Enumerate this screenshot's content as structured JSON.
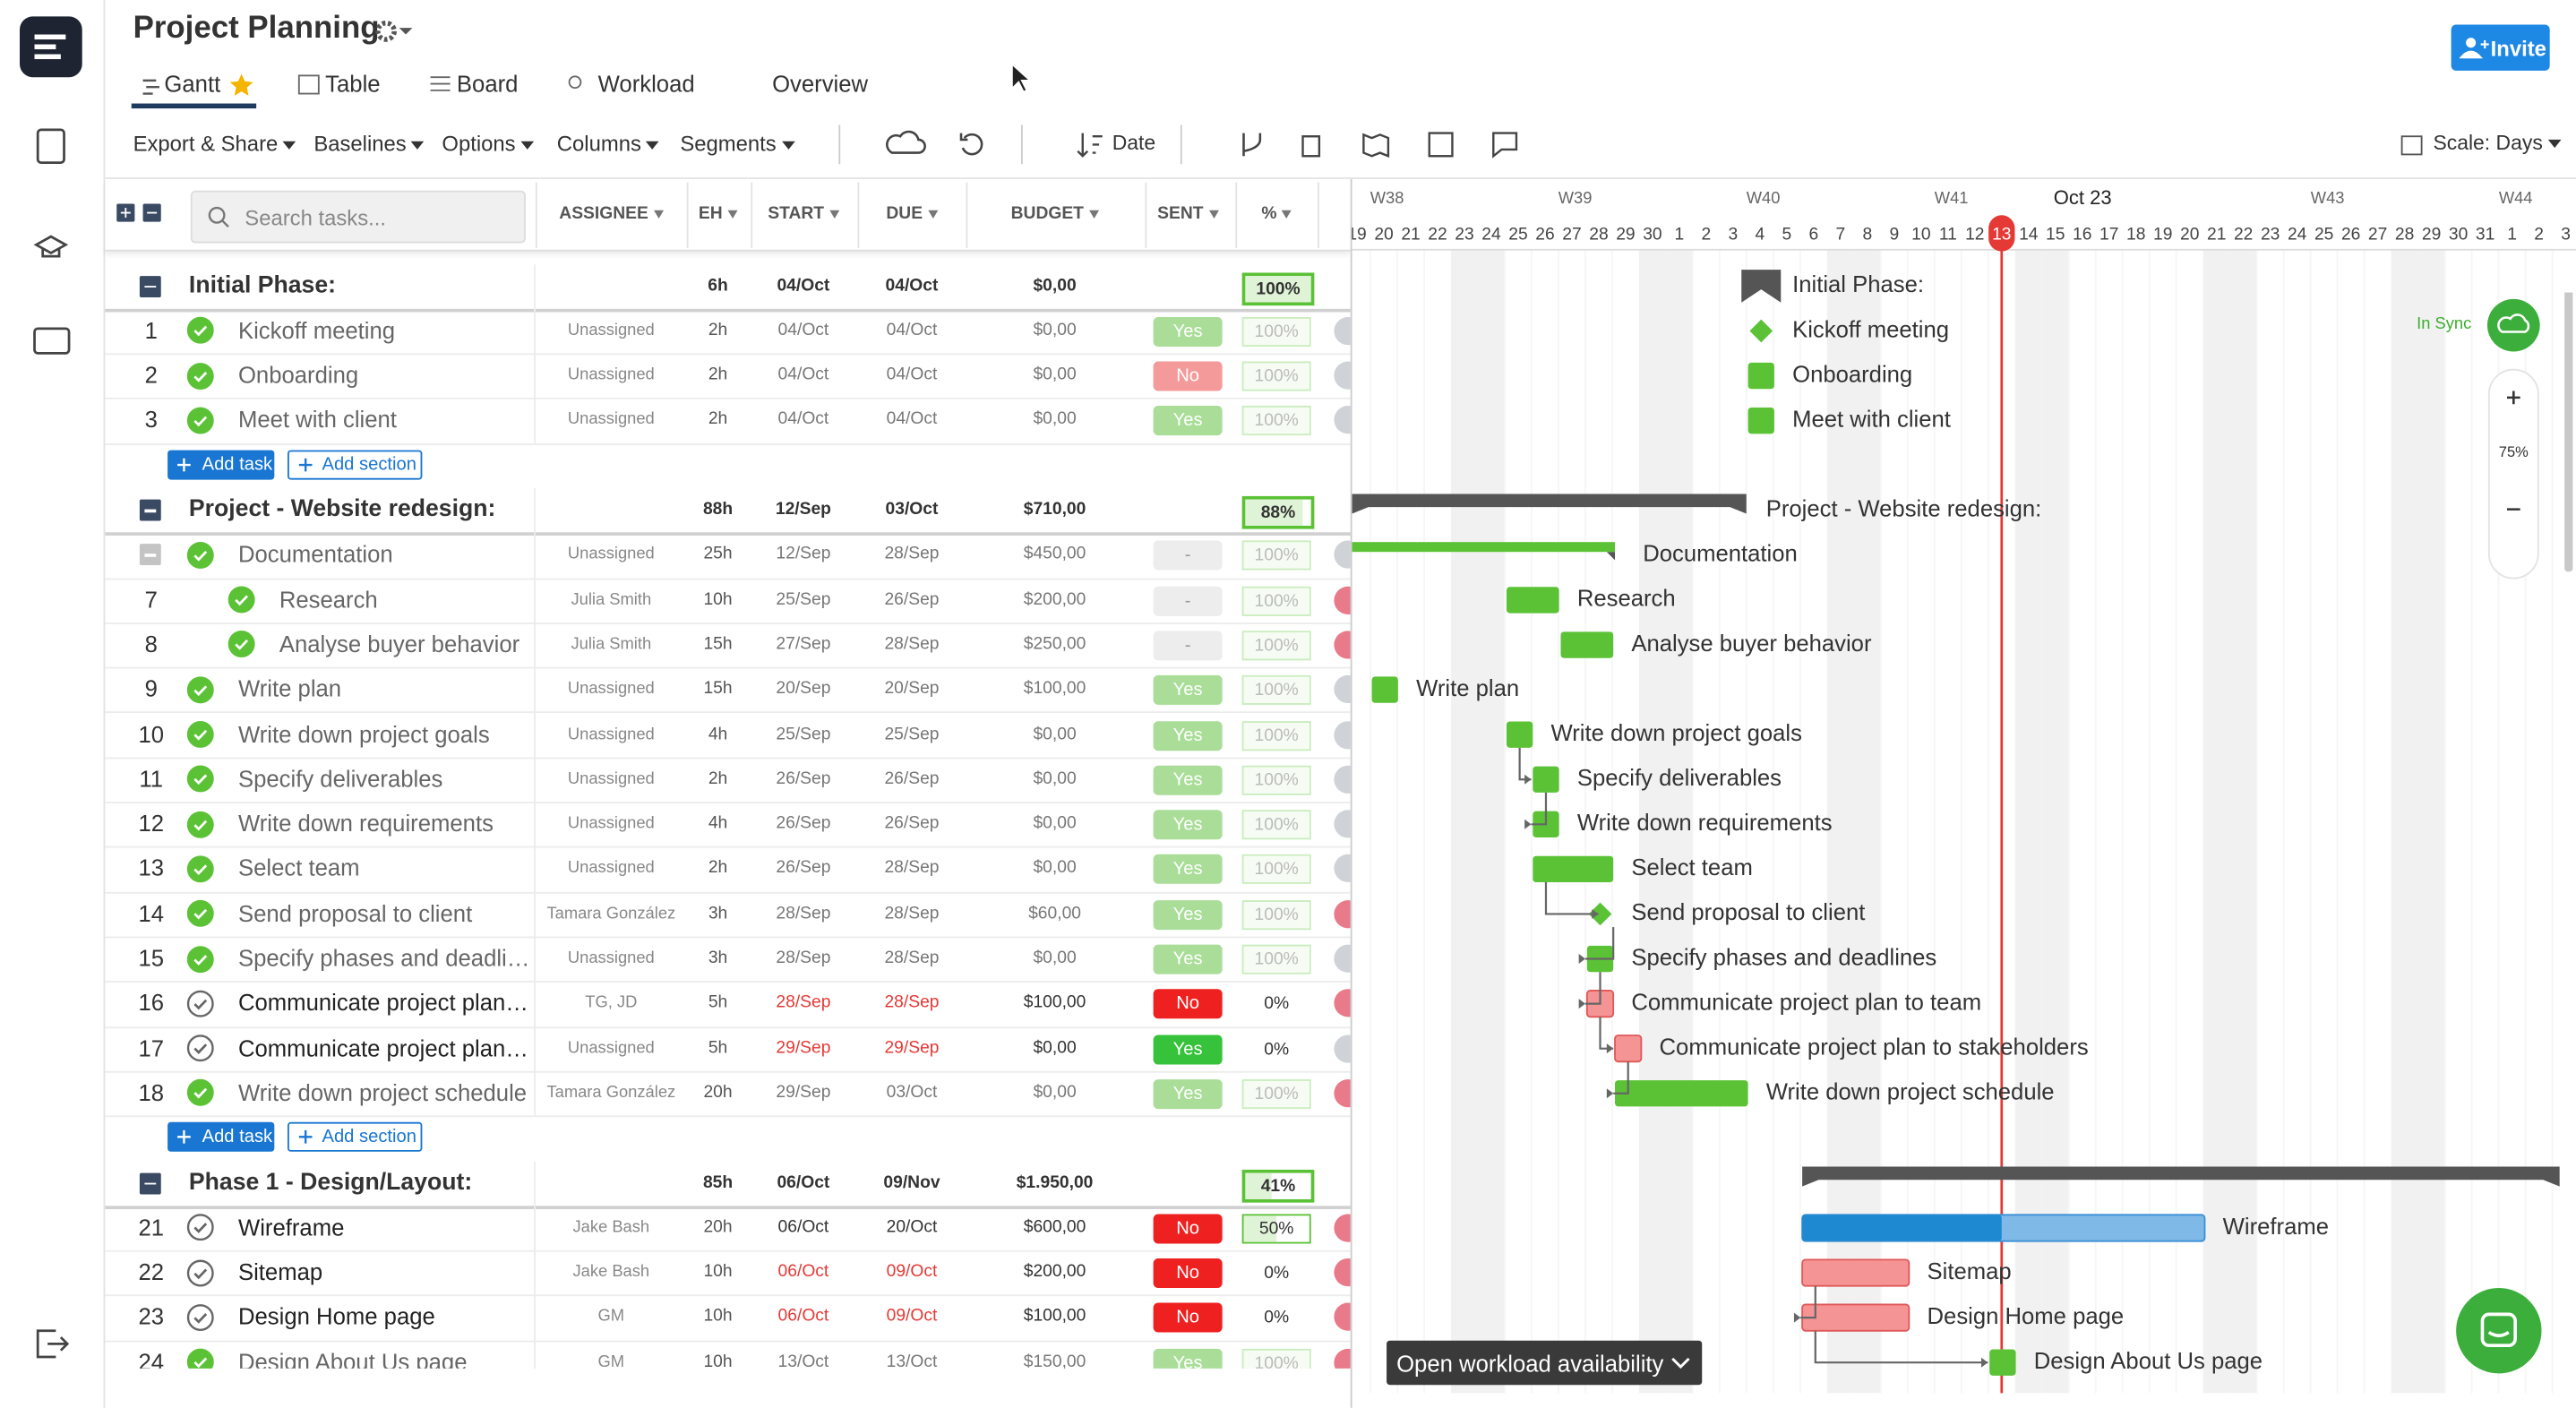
{
  "header": {
    "title": "Project Planning",
    "tabs": [
      "Gantt",
      "Table",
      "Board",
      "Workload",
      "Overview"
    ],
    "invite": "Invite"
  },
  "toolbar": {
    "menus": [
      "Export & Share",
      "Baselines",
      "Options",
      "Columns",
      "Segments"
    ],
    "sort": "Date",
    "scale": "Scale: Days"
  },
  "table": {
    "search_placeholder": "Search tasks...",
    "columns": [
      "ASSIGNEE",
      "EH",
      "START",
      "DUE",
      "BUDGET",
      "SENT",
      "%"
    ],
    "sections": [
      {
        "title": "Initial Phase:",
        "eh": "6h",
        "start": "04/Oct",
        "due": "04/Oct",
        "budget": "$0,00",
        "progress": "100%",
        "tasks": [
          {
            "id": 1,
            "name": "Kickoff meeting",
            "assignee": "Unassigned",
            "eh": "2h",
            "start": "04/Oct",
            "due": "04/Oct",
            "budget": "$0,00",
            "sent": "Yes",
            "progress": "100%"
          },
          {
            "id": 2,
            "name": "Onboarding",
            "assignee": "Unassigned",
            "eh": "2h",
            "start": "04/Oct",
            "due": "04/Oct",
            "budget": "$0,00",
            "sent": "No",
            "progress": "100%"
          },
          {
            "id": 3,
            "name": "Meet with client",
            "assignee": "Unassigned",
            "eh": "2h",
            "start": "04/Oct",
            "due": "04/Oct",
            "budget": "$0,00",
            "sent": "Yes",
            "progress": "100%"
          }
        ],
        "add_task": "Add task",
        "add_section": "Add section"
      },
      {
        "title": "Project - Website redesign:",
        "eh": "88h",
        "start": "12/Sep",
        "due": "03/Oct",
        "budget": "$710,00",
        "progress": "88%",
        "tasks": [
          {
            "name": "Documentation",
            "assignee": "Unassigned",
            "eh": "25h",
            "start": "12/Sep",
            "due": "28/Sep",
            "budget": "$450,00",
            "sent": "-",
            "progress": "100%",
            "subtasks": [
              {
                "id": 7,
                "name": "Research",
                "assignee": "Julia Smith",
                "eh": "10h",
                "start": "25/Sep",
                "due": "26/Sep",
                "budget": "$200,00",
                "sent": "-",
                "progress": "100%"
              },
              {
                "id": 8,
                "name": "Analyse buyer behavior",
                "assignee": "Julia Smith",
                "eh": "15h",
                "start": "27/Sep",
                "due": "28/Sep",
                "budget": "$250,00",
                "sent": "-",
                "progress": "100%"
              }
            ]
          },
          {
            "id": 9,
            "name": "Write plan",
            "assignee": "Unassigned",
            "eh": "15h",
            "start": "20/Sep",
            "due": "20/Sep",
            "budget": "$100,00",
            "sent": "Yes",
            "progress": "100%"
          },
          {
            "id": 10,
            "name": "Write down project goals",
            "assignee": "Unassigned",
            "eh": "4h",
            "start": "25/Sep",
            "due": "25/Sep",
            "budget": "$0,00",
            "sent": "Yes",
            "progress": "100%"
          },
          {
            "id": 11,
            "name": "Specify deliverables",
            "assignee": "Unassigned",
            "eh": "2h",
            "start": "26/Sep",
            "due": "26/Sep",
            "budget": "$0,00",
            "sent": "Yes",
            "progress": "100%"
          },
          {
            "id": 12,
            "name": "Write down requirements",
            "assignee": "Unassigned",
            "eh": "4h",
            "start": "26/Sep",
            "due": "26/Sep",
            "budget": "$0,00",
            "sent": "Yes",
            "progress": "100%"
          },
          {
            "id": 13,
            "name": "Select team",
            "assignee": "Unassigned",
            "eh": "2h",
            "start": "26/Sep",
            "due": "28/Sep",
            "budget": "$0,00",
            "sent": "Yes",
            "progress": "100%"
          },
          {
            "id": 14,
            "name": "Send proposal to client",
            "assignee": "Tamara González",
            "eh": "3h",
            "start": "28/Sep",
            "due": "28/Sep",
            "budget": "$60,00",
            "sent": "Yes",
            "progress": "100%"
          },
          {
            "id": 15,
            "name": "Specify phases and deadlines",
            "assignee": "Unassigned",
            "eh": "3h",
            "start": "28/Sep",
            "due": "28/Sep",
            "budget": "$0,00",
            "sent": "Yes",
            "progress": "100%"
          },
          {
            "id": 16,
            "name": "Communicate project plan to team",
            "assignee": "TG, JD",
            "eh": "5h",
            "start": "28/Sep",
            "due": "28/Sep",
            "budget": "$100,00",
            "sent": "No",
            "progress": "0%"
          },
          {
            "id": 17,
            "name": "Communicate project plan to stakeholders",
            "assignee": "Unassigned",
            "eh": "5h",
            "start": "29/Sep",
            "due": "29/Sep",
            "budget": "$0,00",
            "sent": "Yes",
            "progress": "0%"
          },
          {
            "id": 18,
            "name": "Write down project schedule",
            "assignee": "Tamara González",
            "eh": "20h",
            "start": "29/Sep",
            "due": "03/Oct",
            "budget": "$0,00",
            "sent": "Yes",
            "progress": "100%"
          }
        ],
        "add_task": "Add task",
        "add_section": "Add section"
      },
      {
        "title": "Phase 1 - Design/Layout:",
        "eh": "85h",
        "start": "06/Oct",
        "due": "09/Nov",
        "budget": "$1.950,00",
        "progress": "41%",
        "tasks": [
          {
            "id": 21,
            "name": "Wireframe",
            "assignee": "Jake Bash",
            "eh": "20h",
            "start": "06/Oct",
            "due": "20/Oct",
            "budget": "$600,00",
            "sent": "No",
            "progress": "50%"
          },
          {
            "id": 22,
            "name": "Sitemap",
            "assignee": "Jake Bash",
            "eh": "10h",
            "start": "06/Oct",
            "due": "09/Oct",
            "budget": "$200,00",
            "sent": "No",
            "progress": "0%"
          },
          {
            "id": 23,
            "name": "Design Home page",
            "assignee": "GM",
            "eh": "10h",
            "start": "06/Oct",
            "due": "09/Oct",
            "budget": "$100,00",
            "sent": "No",
            "progress": "0%"
          },
          {
            "id": 24,
            "name": "Design About Us page",
            "assignee": "GM",
            "eh": "10h",
            "start": "13/Oct",
            "due": "13/Oct",
            "budget": "$150,00",
            "sent": "Yes",
            "progress": "100%"
          }
        ]
      }
    ]
  },
  "gantt": {
    "weeks": [
      "W38",
      "W39",
      "W40",
      "W41",
      "Oct 23",
      "W43",
      "W44"
    ],
    "days": [
      19,
      20,
      21,
      22,
      23,
      24,
      25,
      26,
      27,
      28,
      29,
      30,
      1,
      2,
      3,
      4,
      5,
      6,
      7,
      8,
      9,
      10,
      11,
      12,
      13,
      14,
      15,
      16,
      17,
      18,
      19,
      20,
      21,
      22,
      23,
      24,
      25,
      26,
      27,
      28,
      29,
      30,
      31,
      1,
      2,
      3
    ],
    "sync": "In Sync",
    "zoom": "75%",
    "workload": "Open workload availability"
  }
}
